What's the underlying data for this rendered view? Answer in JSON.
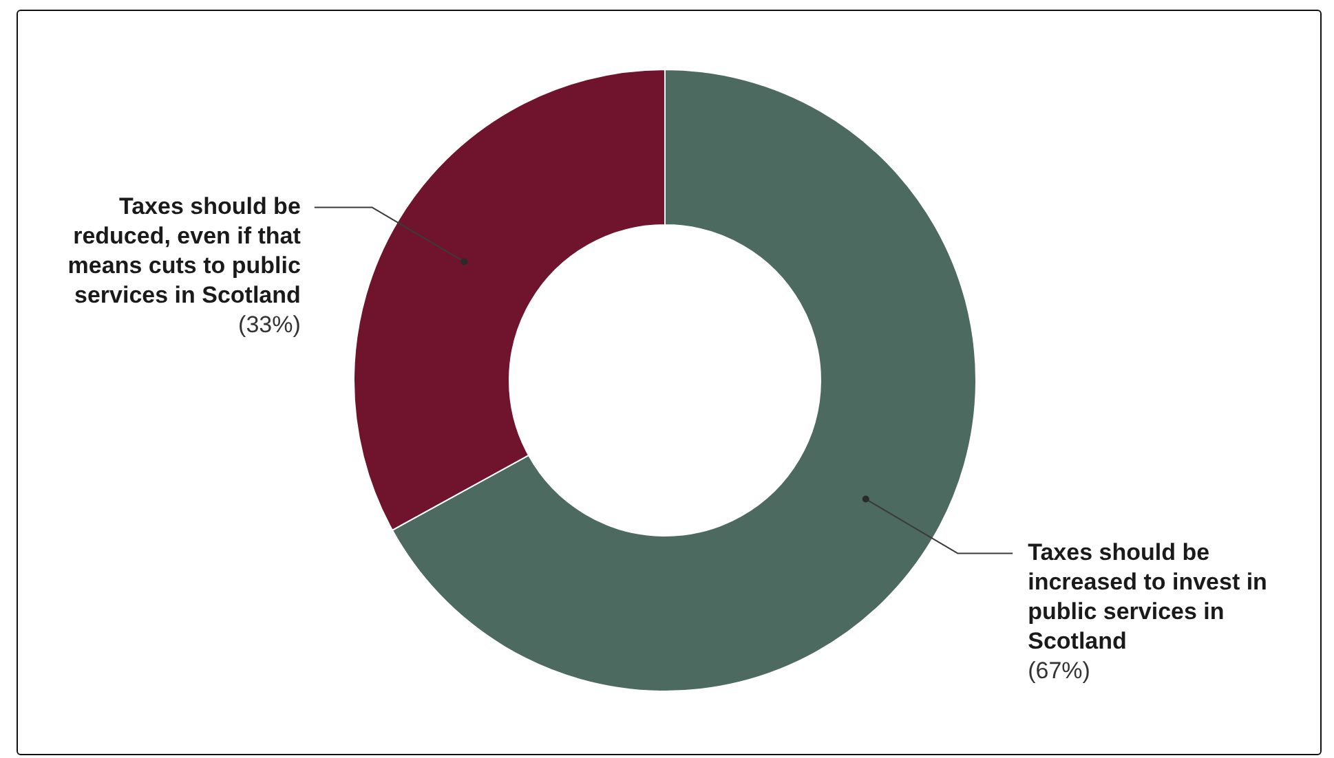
{
  "chart_data": {
    "type": "donut",
    "categories": [
      "Taxes should be increased to invest in public services in Scotland",
      "Taxes should be reduced, even if that means cuts to public services in Scotland"
    ],
    "values": [
      67,
      33
    ],
    "colors": [
      "#4d6a60",
      "#70132c"
    ],
    "value_labels": [
      "(67%)",
      "(33%)"
    ],
    "legend": false
  }
}
